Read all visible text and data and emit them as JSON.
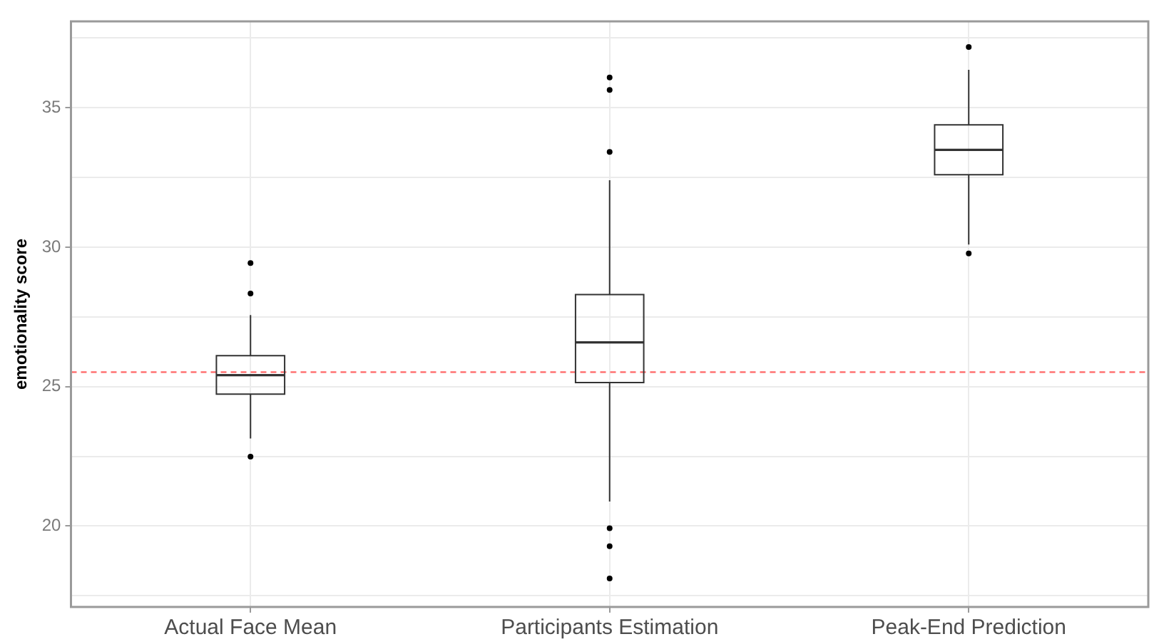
{
  "chart_data": {
    "type": "box",
    "ylabel": "emotionality score",
    "categories": [
      "Actual Face Mean",
      "Participants Estimation",
      "Peak-End Prediction"
    ],
    "boxes": [
      {
        "low": 23.14,
        "q1": 24.73,
        "median": 25.41,
        "q3": 26.11,
        "high": 27.57,
        "outliers": [
          29.43,
          28.34,
          22.49
        ]
      },
      {
        "low": 20.88,
        "q1": 25.15,
        "median": 26.59,
        "q3": 28.3,
        "high": 32.4,
        "outliers": [
          36.09,
          35.64,
          33.42,
          19.92,
          19.28,
          18.12
        ]
      },
      {
        "low": 30.1,
        "q1": 32.6,
        "median": 33.49,
        "q3": 34.39,
        "high": 36.36,
        "outliers": [
          37.18,
          29.78
        ]
      }
    ],
    "color": "#333333",
    "ylim": [
      17.1,
      38.1
    ],
    "yticks": [
      {
        "value": 17.5,
        "label": null
      },
      20,
      {
        "value": 22.5,
        "label": null
      },
      25,
      {
        "value": 27.5,
        "label": null
      },
      30,
      {
        "value": 32.5,
        "label": null
      },
      35,
      {
        "value": 37.5,
        "label": null
      }
    ],
    "ref_lines": [
      {
        "axis": "y",
        "value": 25.52,
        "color": "#ff6666",
        "line_style": "dashed"
      }
    ],
    "grid": true,
    "legend": false
  }
}
